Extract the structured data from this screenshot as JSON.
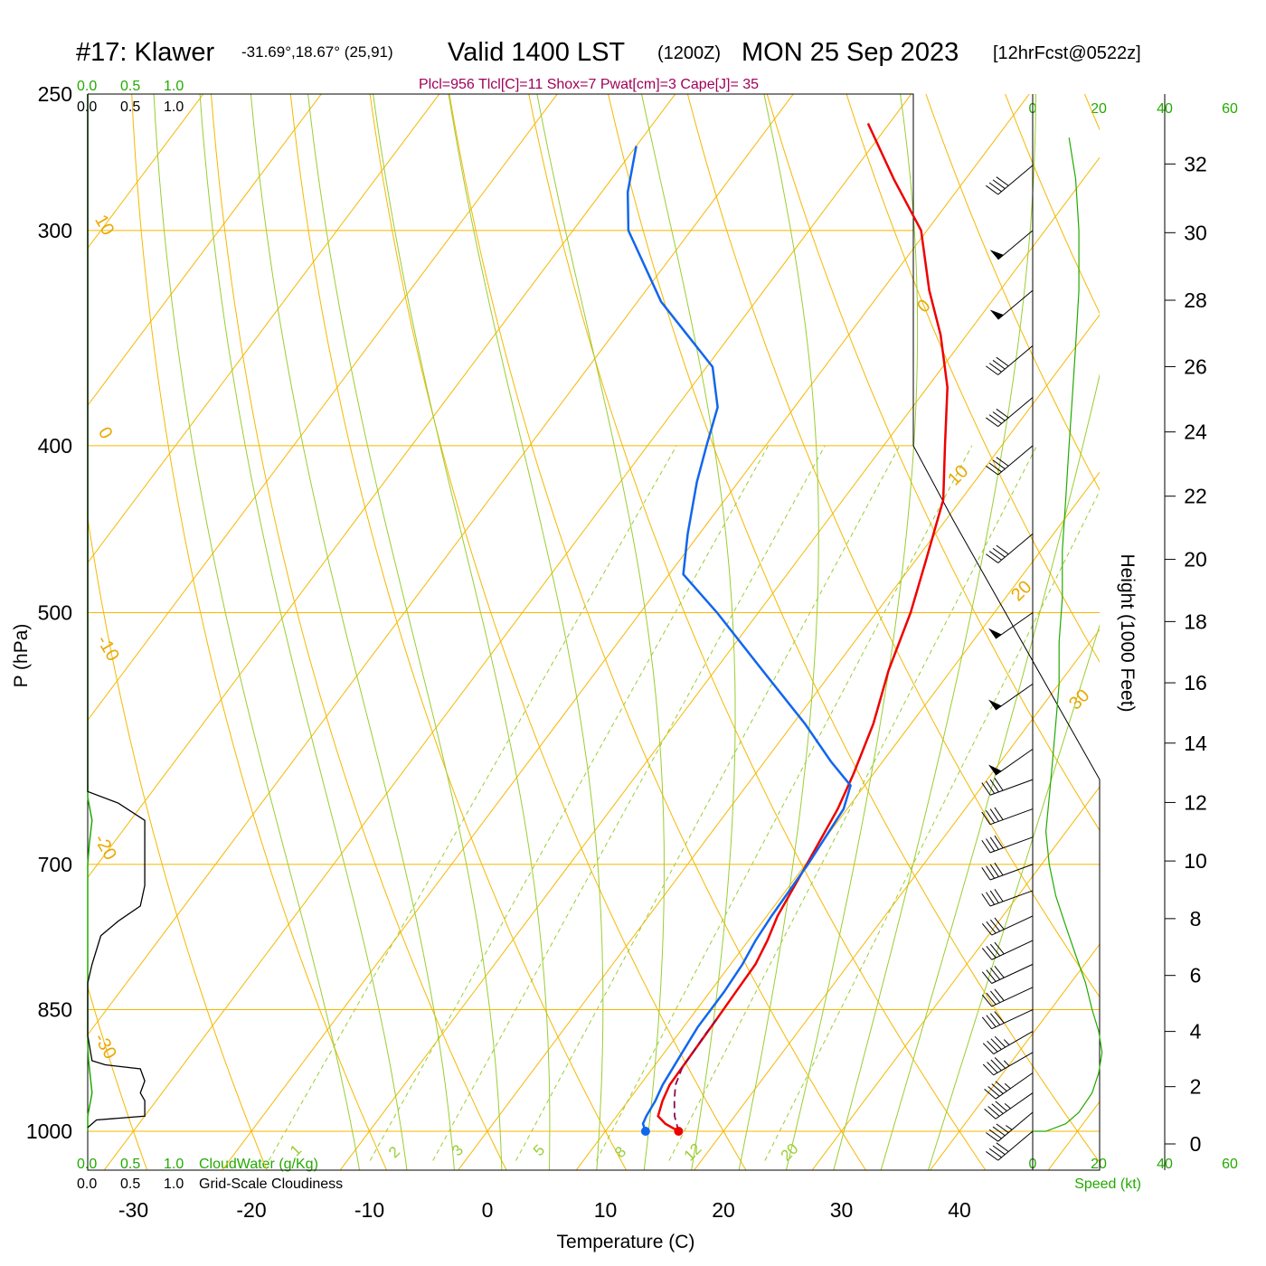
{
  "title": {
    "station": "#17: Klawer",
    "location": "-31.69°,18.67° (25,91)",
    "valid": "Valid 1400 LST",
    "zulu": "(1200Z)",
    "date": "MON 25 Sep 2023",
    "forecast": "[12hrFcst@0522z]"
  },
  "indices": "Plcl=956 Tlcl[C]=11 Shox=7 Pwat[cm]=3 Cape[J]= 35",
  "cloud_axes": {
    "top_green": [
      "0.0",
      "0.5",
      "1.0"
    ],
    "top_black": [
      "0.0",
      "0.5",
      "1.0"
    ],
    "bottom_green": [
      "0.0",
      "0.5",
      "1.0"
    ],
    "bottom_black": [
      "0.0",
      "0.5",
      "1.0"
    ],
    "cloudwater_label": "CloudWater (g/Kg)",
    "cloudiness_label": "Grid-Scale Cloudiness"
  },
  "speed_axis": {
    "ticks_top": [
      "0",
      "20",
      "40",
      "60"
    ],
    "ticks_bottom": [
      "0",
      "20",
      "40",
      "60"
    ],
    "label": "Speed (kt)"
  },
  "colors": {
    "temperature": "#ee0000",
    "dewpoint": "#1166ee",
    "parcel": "#8b0a50",
    "isotherm": "#f5b800",
    "dry_adiabat": "#f5b800",
    "moist_adiabat": "#9acd32",
    "mixing_ratio": "#9acd32",
    "cloudwater": "#22aa00",
    "cloudiness": "#000000",
    "wind_speed": "#22aa00"
  },
  "chart_data": {
    "type": "line",
    "diagram": "skew-T log-P",
    "xlabel": "Temperature (C)",
    "ylabel": "P (hPa)",
    "y2label": "Height (1000 Feet)",
    "xlim": [
      -34,
      46
    ],
    "ylim": [
      1030,
      250
    ],
    "y_scale": "log",
    "x_ticks": [
      -30,
      -20,
      -10,
      0,
      10,
      20,
      30,
      40
    ],
    "y_ticks": [
      250,
      300,
      400,
      500,
      700,
      850,
      1000
    ],
    "height_ticks_kft": [
      0,
      2,
      4,
      6,
      8,
      10,
      12,
      14,
      16,
      18,
      20,
      22,
      24,
      26,
      28,
      30,
      32
    ],
    "isotherm_labels": [
      "10",
      "0",
      "-10",
      "-20",
      "-30",
      "0",
      "10",
      "20",
      "30"
    ],
    "mixing_ratio_labels": [
      "1",
      "2",
      "3",
      "5",
      "8",
      "12",
      "20"
    ],
    "series": [
      {
        "name": "Temperature",
        "points": [
          [
            16.2,
            1000
          ],
          [
            14.6,
            990
          ],
          [
            13.5,
            980
          ],
          [
            12.9,
            960
          ],
          [
            12.5,
            940
          ],
          [
            12.4,
            900
          ],
          [
            12.3,
            860
          ],
          [
            12.2,
            830
          ],
          [
            12.1,
            800
          ],
          [
            11.6,
            775
          ],
          [
            10.9,
            750
          ],
          [
            10.1,
            700
          ],
          [
            9.2,
            650
          ],
          [
            8.3,
            620
          ],
          [
            6.8,
            580
          ],
          [
            4.7,
            540
          ],
          [
            2.9,
            500
          ],
          [
            0.8,
            465
          ],
          [
            -1.5,
            430
          ],
          [
            -4.8,
            400
          ],
          [
            -8.3,
            370
          ],
          [
            -12.2,
            345
          ],
          [
            -16.0,
            325
          ],
          [
            -20.5,
            300
          ],
          [
            -26.1,
            280
          ],
          [
            -31.8,
            260
          ]
        ]
      },
      {
        "name": "Dewpoint",
        "points": [
          [
            13.4,
            1000
          ],
          [
            12.7,
            990
          ],
          [
            12.5,
            980
          ],
          [
            12.3,
            960
          ],
          [
            11.9,
            940
          ],
          [
            11.5,
            900
          ],
          [
            11.2,
            870
          ],
          [
            11.2,
            830
          ],
          [
            11.0,
            800
          ],
          [
            10.6,
            775
          ],
          [
            10.4,
            750
          ],
          [
            10.2,
            700
          ],
          [
            9.7,
            650
          ],
          [
            8.8,
            630
          ],
          [
            5.6,
            610
          ],
          [
            1.0,
            580
          ],
          [
            -6.0,
            540
          ],
          [
            -13.5,
            500
          ],
          [
            -18.8,
            475
          ],
          [
            -21.0,
            450
          ],
          [
            -23.5,
            420
          ],
          [
            -25.0,
            400
          ],
          [
            -26.5,
            380
          ],
          [
            -29.5,
            360
          ],
          [
            -38.0,
            330
          ],
          [
            -45.3,
            300
          ],
          [
            -47.8,
            285
          ],
          [
            -50.0,
            268
          ]
        ]
      },
      {
        "name": "Parcel",
        "points": [
          [
            16.2,
            1000
          ],
          [
            14.9,
            980
          ],
          [
            13.9,
            960
          ],
          [
            13.0,
            940
          ],
          [
            12.5,
            920
          ],
          [
            12.4,
            900
          ],
          [
            12.3,
            880
          ],
          [
            12.3,
            860
          ]
        ]
      }
    ],
    "wind_barbs": [
      {
        "p": 1000,
        "dir": 230,
        "spd": 40
      },
      {
        "p": 975,
        "dir": 230,
        "spd": 45
      },
      {
        "p": 950,
        "dir": 235,
        "spd": 45
      },
      {
        "p": 925,
        "dir": 235,
        "spd": 45
      },
      {
        "p": 900,
        "dir": 240,
        "spd": 45
      },
      {
        "p": 875,
        "dir": 240,
        "spd": 45
      },
      {
        "p": 850,
        "dir": 245,
        "spd": 40
      },
      {
        "p": 825,
        "dir": 245,
        "spd": 40
      },
      {
        "p": 800,
        "dir": 245,
        "spd": 40
      },
      {
        "p": 775,
        "dir": 245,
        "spd": 40
      },
      {
        "p": 750,
        "dir": 245,
        "spd": 40
      },
      {
        "p": 725,
        "dir": 250,
        "spd": 40
      },
      {
        "p": 700,
        "dir": 250,
        "spd": 40
      },
      {
        "p": 675,
        "dir": 250,
        "spd": 40
      },
      {
        "p": 650,
        "dir": 250,
        "spd": 40
      },
      {
        "p": 625,
        "dir": 250,
        "spd": 40
      },
      {
        "p": 600,
        "dir": 235,
        "spd": 50
      },
      {
        "p": 550,
        "dir": 235,
        "spd": 50
      },
      {
        "p": 500,
        "dir": 235,
        "spd": 50
      },
      {
        "p": 450,
        "dir": 230,
        "spd": 40
      },
      {
        "p": 400,
        "dir": 230,
        "spd": 40
      },
      {
        "p": 375,
        "dir": 230,
        "spd": 40
      },
      {
        "p": 350,
        "dir": 230,
        "spd": 40
      },
      {
        "p": 325,
        "dir": 230,
        "spd": 50
      },
      {
        "p": 300,
        "dir": 230,
        "spd": 50
      },
      {
        "p": 275,
        "dir": 230,
        "spd": 40
      }
    ],
    "wind_speed_profile": [
      [
        0,
        1000
      ],
      [
        4,
        1000
      ],
      [
        10,
        990
      ],
      [
        14,
        975
      ],
      [
        18,
        950
      ],
      [
        20,
        925
      ],
      [
        21,
        900
      ],
      [
        20,
        875
      ],
      [
        18,
        850
      ],
      [
        16,
        820
      ],
      [
        13,
        790
      ],
      [
        10,
        760
      ],
      [
        7,
        730
      ],
      [
        5,
        700
      ],
      [
        4,
        670
      ],
      [
        5,
        640
      ],
      [
        6,
        610
      ],
      [
        7,
        580
      ],
      [
        8,
        550
      ],
      [
        8,
        520
      ],
      [
        9,
        490
      ],
      [
        9,
        460
      ],
      [
        10,
        430
      ],
      [
        11,
        400
      ],
      [
        12,
        375
      ],
      [
        13,
        350
      ],
      [
        14,
        325
      ],
      [
        14,
        300
      ],
      [
        13,
        280
      ],
      [
        11,
        265
      ]
    ],
    "cloudwater_profile": [
      [
        0.0,
        1000
      ],
      [
        0.0,
        980
      ],
      [
        0.05,
        950
      ],
      [
        0.03,
        930
      ],
      [
        0.01,
        910
      ],
      [
        0.0,
        890
      ],
      [
        0.0,
        850
      ],
      [
        0.0,
        800
      ],
      [
        0.0,
        750
      ],
      [
        0.0,
        700
      ],
      [
        0.02,
        680
      ],
      [
        0.05,
        660
      ],
      [
        0.0,
        640
      ],
      [
        0.0,
        250
      ]
    ],
    "cloudiness_profile": [
      [
        0.0,
        995
      ],
      [
        0.1,
        985
      ],
      [
        0.65,
        980
      ],
      [
        0.65,
        960
      ],
      [
        0.6,
        950
      ],
      [
        0.65,
        935
      ],
      [
        0.6,
        920
      ],
      [
        0.2,
        915
      ],
      [
        0.05,
        910
      ],
      [
        0.0,
        880
      ],
      [
        0.0,
        820
      ],
      [
        0.05,
        800
      ],
      [
        0.15,
        770
      ],
      [
        0.35,
        755
      ],
      [
        0.6,
        740
      ],
      [
        0.65,
        720
      ],
      [
        0.65,
        680
      ],
      [
        0.65,
        660
      ],
      [
        0.35,
        645
      ],
      [
        0.0,
        635
      ],
      [
        0.0,
        250
      ]
    ]
  }
}
